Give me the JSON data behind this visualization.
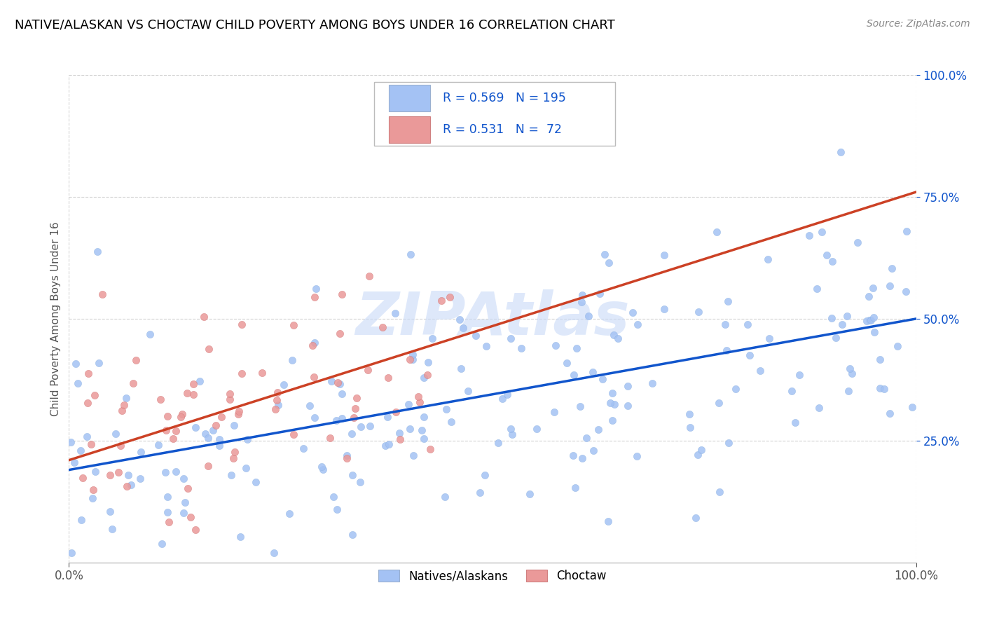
{
  "title": "NATIVE/ALASKAN VS CHOCTAW CHILD POVERTY AMONG BOYS UNDER 16 CORRELATION CHART",
  "source": "Source: ZipAtlas.com",
  "ylabel": "Child Poverty Among Boys Under 16",
  "xlim": [
    0.0,
    1.0
  ],
  "ylim": [
    0.0,
    1.0
  ],
  "ytick_labels": [
    "25.0%",
    "50.0%",
    "75.0%",
    "100.0%"
  ],
  "ytick_positions": [
    0.25,
    0.5,
    0.75,
    1.0
  ],
  "blue_color": "#a4c2f4",
  "pink_color": "#ea9999",
  "blue_line_color": "#1155cc",
  "pink_line_color": "#cc4125",
  "R_blue": 0.569,
  "N_blue": 195,
  "R_pink": 0.531,
  "N_pink": 72,
  "legend_label_blue": "Natives/Alaskans",
  "legend_label_pink": "Choctaw",
  "title_color": "#000000",
  "source_color": "#888888",
  "stat_color": "#1155cc",
  "grid_color": "#c0c0c0",
  "background_color": "#ffffff",
  "blue_line_y0": 0.19,
  "blue_line_y1": 0.5,
  "pink_line_y0": 0.21,
  "pink_line_y1": 0.76,
  "watermark_color": "#c9daf8",
  "seed_blue": 12,
  "seed_pink": 77
}
